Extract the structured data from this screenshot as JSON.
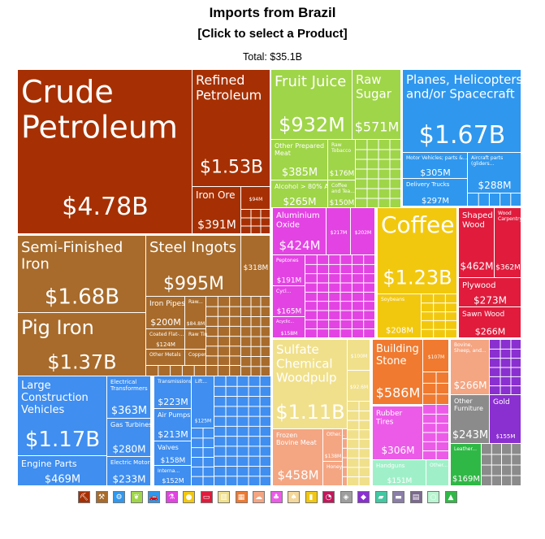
{
  "header": {
    "title": "Imports from Brazil",
    "subtitle": "[Click to select a Product]",
    "total": "Total: $35.1B"
  },
  "colors": {
    "minerals": "#a63003",
    "metals": "#a86b2b",
    "foodstuffs": "#9fd548",
    "transportation": "#2f97ee",
    "chemicals": "#e343e3",
    "vegetable": "#f2c80f",
    "wood": "#e01b3c",
    "paper": "#f0e08b",
    "stone": "#f07a2f",
    "animal": "#f4a582",
    "machinery": "#3f8ef0",
    "instruments": "#8a2fd0"
  },
  "chart_data": {
    "type": "treemap",
    "title": "Imports from Brazil",
    "total": "$35.1B",
    "items": [
      {
        "name": "Crude Petroleum",
        "value": "$4.78B",
        "category": "minerals"
      },
      {
        "name": "Refined Petroleum",
        "value": "$1.53B",
        "category": "minerals"
      },
      {
        "name": "Iron Ore",
        "value": "$391M",
        "category": "minerals"
      },
      {
        "name": "",
        "value": "$94M",
        "category": "minerals"
      },
      {
        "name": "Semi-Finished Iron",
        "value": "$1.68B",
        "category": "metals"
      },
      {
        "name": "Pig Iron",
        "value": "$1.37B",
        "category": "metals"
      },
      {
        "name": "Steel Ingots",
        "value": "$995M",
        "category": "metals"
      },
      {
        "name": "",
        "value": "$318M",
        "category": "metals"
      },
      {
        "name": "Iron Pipes",
        "value": "$200M",
        "category": "metals"
      },
      {
        "name": "Raw...",
        "value": "$84.8M",
        "category": "metals"
      },
      {
        "name": "Coated Flat-...",
        "value": "$124M",
        "category": "metals"
      },
      {
        "name": "Raw Tin",
        "value": "",
        "category": "metals"
      },
      {
        "name": "Other Metals",
        "value": "",
        "category": "metals"
      },
      {
        "name": "Copper...",
        "value": "",
        "category": "metals"
      },
      {
        "name": "Fruit Juice",
        "value": "$932M",
        "category": "foodstuffs"
      },
      {
        "name": "Raw Sugar",
        "value": "$571M",
        "category": "foodstuffs"
      },
      {
        "name": "Other Prepared Meat",
        "value": "$385M",
        "category": "foodstuffs"
      },
      {
        "name": "Raw Tobacco",
        "value": "$176M",
        "category": "foodstuffs"
      },
      {
        "name": "Alcohol > 80% ABV",
        "value": "$265M",
        "category": "foodstuffs"
      },
      {
        "name": "Coffee and Tea...",
        "value": "$150M",
        "category": "foodstuffs"
      },
      {
        "name": "Planes, Helicopters, and/or Spacecraft",
        "value": "$1.67B",
        "category": "transportation"
      },
      {
        "name": "Motor Vehicles; parts &...",
        "value": "$305M",
        "category": "transportation"
      },
      {
        "name": "Aircraft parts (gliders...",
        "value": "$288M",
        "category": "transportation"
      },
      {
        "name": "Delivery Trucks",
        "value": "$297M",
        "category": "transportation"
      },
      {
        "name": "Aluminium Oxide",
        "value": "$424M",
        "category": "chemicals"
      },
      {
        "name": "",
        "value": "$217M",
        "category": "chemicals"
      },
      {
        "name": "",
        "value": "$202M",
        "category": "chemicals"
      },
      {
        "name": "Peptones",
        "value": "$191M",
        "category": "chemicals"
      },
      {
        "name": "Cycl...",
        "value": "$165M",
        "category": "chemicals"
      },
      {
        "name": "Acyclic...",
        "value": "$158M",
        "category": "chemicals"
      },
      {
        "name": "Coffee",
        "value": "$1.23B",
        "category": "vegetable"
      },
      {
        "name": "Soybeans",
        "value": "$208M",
        "category": "vegetable"
      },
      {
        "name": "Shaped Wood",
        "value": "$462M",
        "category": "wood"
      },
      {
        "name": "Wood Carpentry",
        "value": "$362M",
        "category": "wood"
      },
      {
        "name": "Plywood",
        "value": "$273M",
        "category": "wood"
      },
      {
        "name": "Sawn Wood",
        "value": "$266M",
        "category": "wood"
      },
      {
        "name": "Sulfate Chemical Woodpulp",
        "value": "$1.11B",
        "category": "paper"
      },
      {
        "name": "",
        "value": "$100M",
        "category": "paper"
      },
      {
        "name": "",
        "value": "$92.6M",
        "category": "paper"
      },
      {
        "name": "Building Stone",
        "value": "$586M",
        "category": "stone"
      },
      {
        "name": "",
        "value": "$107M",
        "category": "stone"
      },
      {
        "name": "Bovine, Sheep, and...",
        "value": "$266M",
        "category": "animal"
      },
      {
        "name": "Other Furniture",
        "value": "$243M",
        "category": "misc"
      },
      {
        "name": "Gold",
        "value": "$155M",
        "category": "precious"
      },
      {
        "name": "Rubber Tires",
        "value": "$306M",
        "category": "plastics"
      },
      {
        "name": "Frozen Bovine Meat",
        "value": "$458M",
        "category": "animal"
      },
      {
        "name": "Other...",
        "value": "$138M",
        "category": "animal"
      },
      {
        "name": "Honey",
        "value": "",
        "category": "animal"
      },
      {
        "name": "Handguns",
        "value": "$151M",
        "category": "weapons"
      },
      {
        "name": "Other...",
        "value": "",
        "category": "weapons"
      },
      {
        "name": "Leather...",
        "value": "$169M",
        "category": "hides"
      },
      {
        "name": "Large Construction Vehicles",
        "value": "$1.17B",
        "category": "machinery"
      },
      {
        "name": "Engine Parts",
        "value": "$469M",
        "category": "machinery"
      },
      {
        "name": "Electrical Transformers",
        "value": "$363M",
        "category": "machinery"
      },
      {
        "name": "Gas Turbines",
        "value": "$280M",
        "category": "machinery"
      },
      {
        "name": "Electric Motors",
        "value": "$233M",
        "category": "machinery"
      },
      {
        "name": "Transmissions",
        "value": "$223M",
        "category": "machinery"
      },
      {
        "name": "Air Pumps",
        "value": "$213M",
        "category": "machinery"
      },
      {
        "name": "Valves",
        "value": "$158M",
        "category": "machinery"
      },
      {
        "name": "Interna...",
        "value": "$152M",
        "category": "machinery"
      },
      {
        "name": "Lift...",
        "value": "$125M",
        "category": "machinery"
      }
    ]
  },
  "legend": {
    "icons": [
      "pick-icon",
      "anvil-icon",
      "gear-icon",
      "leaf-icon",
      "car-icon",
      "flask-icon",
      "apple-icon",
      "ticket-icon",
      "wood-icon",
      "stone-icon",
      "sheep-icon",
      "wine-icon",
      "shirt-icon",
      "bottle-icon",
      "gauge-icon",
      "box-icon",
      "gem-icon",
      "shoe-icon",
      "sofa-icon",
      "book-icon",
      "tire-icon",
      "tshirt-icon"
    ],
    "colors": [
      "#a63003",
      "#a86b2b",
      "#2f97ee",
      "#9fd548",
      "#2f97ee",
      "#e343e3",
      "#f2c80f",
      "#e01b3c",
      "#f0e08b",
      "#f07a2f",
      "#f4a582",
      "#ec5be8",
      "#f4d79a",
      "#f2c80f",
      "#c2185b",
      "#9e9e9e",
      "#8a2fd0",
      "#40c9a2",
      "#8b7ea8",
      "#7c6a8e",
      "#b9f5d0",
      "#30b846"
    ]
  }
}
